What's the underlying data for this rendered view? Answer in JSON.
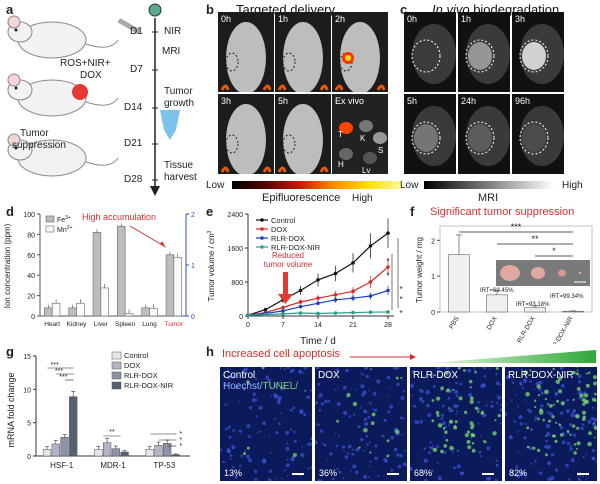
{
  "panel_a": {
    "label": "a",
    "steps": [
      "D1",
      "D7",
      "D14",
      "D21",
      "D28"
    ],
    "events": [
      "NIR",
      "MRI",
      "Tumor",
      "growth",
      "Tissue",
      "harvest"
    ],
    "mouse2_label_1": "ROS+NIR+",
    "mouse2_label_2": "DOX",
    "mouse3_label_1": "Tumor",
    "mouse3_label_2": "suppression"
  },
  "panel_b": {
    "label": "b",
    "title": "Targeted delivery",
    "tiles": [
      "0h",
      "1h",
      "2h",
      "3h",
      "5h",
      "Ex vivo"
    ],
    "organs": [
      "T",
      "K",
      "S",
      "H",
      "Lv"
    ],
    "cbar_low": "Low",
    "cbar_high": "High",
    "cbar_label": "Epifluorescence"
  },
  "panel_c": {
    "label": "c",
    "title_italic": "In vivo",
    "title_rest": " biodegradation",
    "tiles": [
      "0h",
      "1h",
      "3h",
      "5h",
      "24h",
      "96h"
    ],
    "cbar_low": "Low",
    "cbar_high": "High",
    "cbar_label": "MRI"
  },
  "panel_d": {
    "label": "d",
    "annotation": "High accumulation",
    "legend": [
      "Fe3+",
      "Mn2+"
    ],
    "fe_sup": "3+",
    "mn_sup": "2+",
    "ylabel": "Ion concentration (ppm)",
    "yticks_left": [
      "0",
      "20",
      "40",
      "60",
      "80",
      "100"
    ],
    "yticks_right": [
      "0",
      "1",
      "2"
    ],
    "chart_data": {
      "type": "bar",
      "categories": [
        "Heart",
        "Kidney",
        "Liver",
        "Spleen",
        "Lung",
        "Tumor"
      ],
      "series": [
        {
          "name": "Fe3+",
          "values": [
            8,
            8,
            82,
            88,
            8,
            60
          ]
        },
        {
          "name": "Mn2+",
          "values": [
            0.25,
            0.25,
            0.55,
            0.05,
            0.15,
            1.15
          ]
        }
      ],
      "ylim": [
        0,
        100
      ],
      "y2lim": [
        0,
        2
      ]
    }
  },
  "panel_e": {
    "label": "e",
    "ylabel": "Tumor volume / cm",
    "ylabel_sup": "3",
    "xlabel": "Time / d",
    "annotation_1": "Reduced",
    "annotation_2": "tumor volume",
    "stars": [
      "*",
      "*",
      "*",
      "*",
      "*"
    ],
    "yticks": [
      "0",
      "800",
      "1600",
      "2400"
    ],
    "xticks": [
      "0",
      "7",
      "14",
      "21",
      "28"
    ],
    "chart_data": {
      "type": "line",
      "x": [
        0,
        3.5,
        7,
        10.5,
        14,
        17.5,
        21,
        24.5,
        28
      ],
      "series": [
        {
          "name": "Control",
          "color": "#111111",
          "values": [
            20,
            150,
            380,
            600,
            850,
            1000,
            1250,
            1650,
            1950
          ]
        },
        {
          "name": "DOX",
          "color": "#d62728",
          "values": [
            20,
            80,
            200,
            330,
            420,
            500,
            580,
            800,
            1150
          ]
        },
        {
          "name": "RLR-DOX",
          "color": "#1f3fbf",
          "values": [
            20,
            60,
            120,
            220,
            300,
            380,
            420,
            470,
            600
          ]
        },
        {
          "name": "RLR-DOX-NIR",
          "color": "#2a9d8f",
          "values": [
            20,
            30,
            50,
            70,
            60,
            70,
            80,
            90,
            95
          ]
        }
      ],
      "ylim": [
        0,
        2400
      ],
      "xlim": [
        0,
        28
      ]
    }
  },
  "panel_f": {
    "label": "f",
    "title": "Significant tumor suppression",
    "ylabel": "Tumor weight / mg",
    "sig": [
      "***",
      "**",
      "*"
    ],
    "irt": [
      "IRT=69.45%",
      "IRT=93.18%",
      "IRT=99.34%"
    ],
    "yticks": [
      "0",
      "1",
      "2"
    ],
    "chart_data": {
      "type": "bar",
      "categories": [
        "PBS",
        "DOX",
        "RLR-DOX",
        "RLR-DOX-NIR"
      ],
      "values": [
        1.6,
        0.48,
        0.12,
        0.02
      ],
      "errors": [
        0.55,
        0.12,
        0.05,
        0.01
      ],
      "ylim": [
        0,
        2.4
      ]
    }
  },
  "panel_g": {
    "label": "g",
    "ylabel": "mRNA fold change",
    "sig": [
      "***",
      "***",
      "***",
      "**",
      "*",
      "*",
      "*"
    ],
    "yticks": [
      "0",
      "5",
      "10",
      "15"
    ],
    "chart_data": {
      "type": "bar",
      "categories": [
        "HSF-1",
        "MDR-1",
        "TP-53"
      ],
      "series": [
        {
          "name": "Control",
          "color": "#e6e6e6",
          "values": [
            1,
            1,
            1
          ]
        },
        {
          "name": "DOX",
          "color": "#b4b4c8",
          "values": [
            1.8,
            2.0,
            1.6
          ]
        },
        {
          "name": "RLR-DOX",
          "color": "#8a93a8",
          "values": [
            2.8,
            1.1,
            1.9
          ]
        },
        {
          "name": "RLR-DOX-NIR",
          "color": "#556070",
          "values": [
            8.9,
            0.6,
            0.2
          ]
        }
      ],
      "errors": [
        [
          0.4,
          0.4,
          0.4
        ],
        [
          0.5,
          0.6,
          0.5
        ],
        [
          0.4,
          0.4,
          0.5
        ],
        [
          0.8,
          0.2,
          0.1
        ]
      ],
      "ylim": [
        0,
        15
      ]
    }
  },
  "panel_h": {
    "label": "h",
    "title": "Increased cell apoptosis",
    "tiles": [
      {
        "label": "Control",
        "pct": "13%"
      },
      {
        "label": "DOX",
        "pct": "36%"
      },
      {
        "label": "RLR-DOX",
        "pct": "68%"
      },
      {
        "label": "RLR-DOX-NIR",
        "pct": "82%"
      }
    ],
    "stain_1": "Hoechst/",
    "stain_2": "TUNEL/"
  },
  "colors": {
    "accent_red": "#d32f2f",
    "tunel_green": "#7dd96b",
    "hoechst_blue": "#2233aa"
  }
}
